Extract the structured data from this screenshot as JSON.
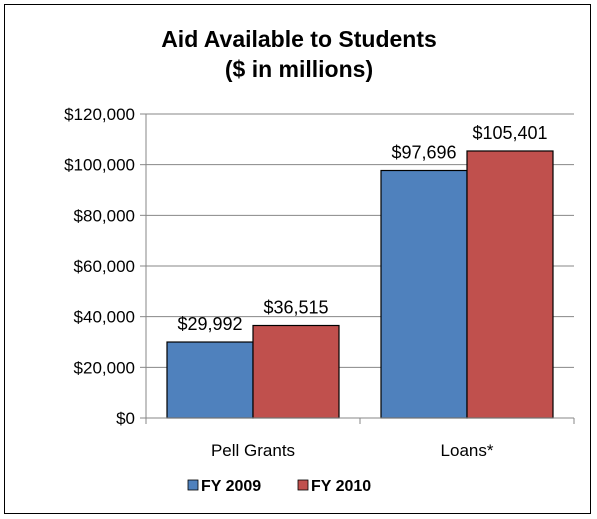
{
  "chart_data": {
    "type": "bar",
    "title": [
      "Aid Available to Students",
      "($ in millions)"
    ],
    "categories": [
      "Pell Grants",
      "Loans*"
    ],
    "series": [
      {
        "name": "FY 2009",
        "color": "#4F81BD",
        "values": [
          29992,
          97696
        ],
        "labels": [
          "$29,992",
          "$97,696"
        ]
      },
      {
        "name": "FY 2010",
        "color": "#C0504D",
        "values": [
          36515,
          105401
        ],
        "labels": [
          "$36,515",
          "$105,401"
        ]
      }
    ],
    "ylim": [
      0,
      120000
    ],
    "yticks": [
      0,
      20000,
      40000,
      60000,
      80000,
      100000,
      120000
    ],
    "ytick_labels": [
      "$0",
      "$20,000",
      "$40,000",
      "$60,000",
      "$80,000",
      "$100,000",
      "$120,000"
    ],
    "grid": true,
    "legend": "bottom"
  }
}
